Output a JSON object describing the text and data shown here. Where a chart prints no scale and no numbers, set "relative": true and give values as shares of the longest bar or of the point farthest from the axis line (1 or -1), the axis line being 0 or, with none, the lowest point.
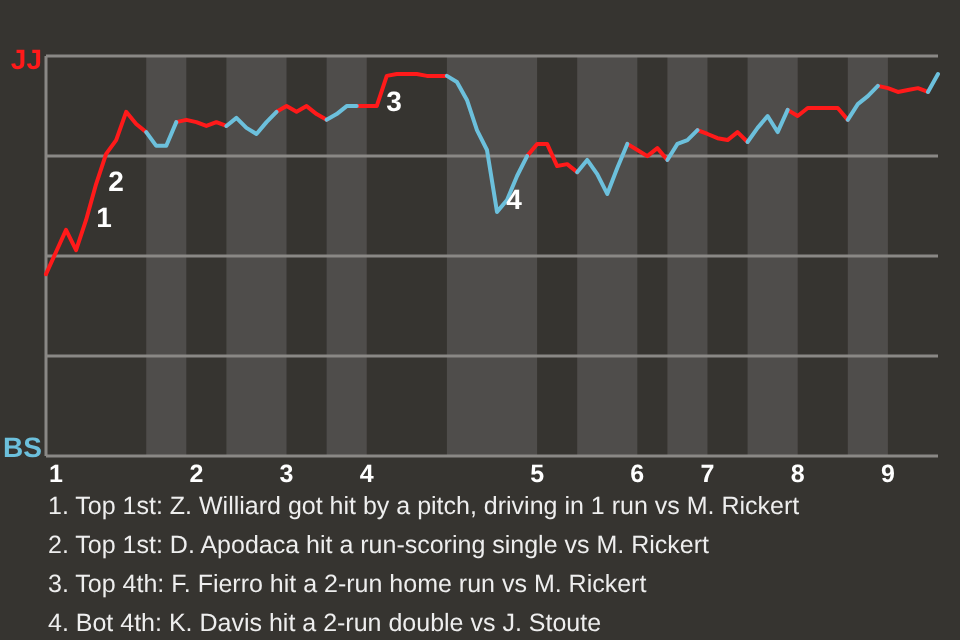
{
  "chart_data": {
    "type": "line",
    "relative": true,
    "grid": "y",
    "line_style": "solid",
    "categories": [
      null,
      "1",
      null,
      null,
      null,
      null,
      null,
      null,
      null,
      null,
      null,
      null,
      null,
      null,
      null,
      "2",
      null,
      null,
      null,
      null,
      null,
      null,
      null,
      null,
      "3",
      null,
      null,
      null,
      null,
      null,
      null,
      null,
      "4",
      null,
      null,
      null,
      null,
      null,
      null,
      null,
      null,
      null,
      null,
      null,
      null,
      null,
      null,
      null,
      null,
      "5",
      null,
      null,
      null,
      null,
      null,
      null,
      null,
      null,
      null,
      "6",
      null,
      null,
      null,
      null,
      null,
      null,
      "7",
      null,
      null,
      null,
      null,
      null,
      null,
      null,
      null,
      "8",
      null,
      null,
      null,
      null,
      null,
      null,
      null,
      null,
      "9",
      null,
      null,
      null,
      null,
      null
    ],
    "series": [
      {
        "name": "JJ",
        "color": "#ff1a1a",
        "values": [
          0.476,
          0.534,
          0.592,
          0.539,
          0.618,
          0.712,
          0.791,
          0.827,
          0.901,
          0.869,
          0.848,
          null,
          null,
          0.874,
          0.88,
          0.874,
          0.864,
          0.874,
          0.864,
          null,
          null,
          null,
          null,
          0.901,
          0.916,
          0.901,
          0.916,
          0.895,
          0.88,
          null,
          null,
          0.916,
          0.916,
          0.916,
          0.995,
          1,
          1,
          1,
          0.995,
          0.995,
          0.995,
          null,
          null,
          null,
          null,
          null,
          null,
          null,
          0.785,
          0.817,
          0.817,
          0.759,
          0.764,
          0.743,
          null,
          null,
          null,
          null,
          0.817,
          0.801,
          0.785,
          0.806,
          0.775,
          null,
          null,
          0.853,
          0.843,
          0.832,
          0.827,
          0.848,
          0.822,
          null,
          null,
          null,
          0.906,
          0.89,
          0.911,
          0.911,
          0.911,
          0.911,
          0.88,
          null,
          null,
          0.969,
          0.963,
          0.953,
          0.958,
          0.963,
          0.953,
          null
        ]
      },
      {
        "name": "BS",
        "color": "#6cc0dc",
        "values": [
          null,
          null,
          null,
          null,
          null,
          null,
          null,
          null,
          null,
          null,
          0.848,
          0.812,
          0.812,
          0.874,
          null,
          null,
          null,
          null,
          0.864,
          0.885,
          0.859,
          0.843,
          0.874,
          0.901,
          null,
          null,
          null,
          null,
          0.88,
          0.895,
          0.916,
          0.916,
          null,
          null,
          null,
          null,
          null,
          null,
          null,
          null,
          0.995,
          0.979,
          0.932,
          0.853,
          0.801,
          0.639,
          0.67,
          0.733,
          0.785,
          null,
          null,
          null,
          null,
          0.743,
          0.775,
          0.738,
          0.686,
          0.754,
          0.817,
          null,
          null,
          null,
          0.775,
          0.817,
          0.827,
          0.853,
          null,
          null,
          null,
          null,
          0.822,
          0.859,
          0.89,
          0.848,
          0.906,
          null,
          null,
          null,
          null,
          null,
          0.88,
          0.921,
          0.942,
          0.969,
          null,
          null,
          null,
          null,
          0.953,
          1
        ]
      }
    ],
    "annotations": [
      "1",
      "2",
      "3",
      "4",
      "1. Top 1st: Z. Williard got hit by a pitch, driving in 1 run vs M. Rickert",
      "2. Top 1st: D. Apodaca hit a run-scoring single vs M. Rickert",
      "3. Top 4th: F. Fierro hit a 2-run home run vs M. Rickert",
      "4. Bot 4th: K. Davis hit a 2-run double vs J. Stoute"
    ]
  }
}
